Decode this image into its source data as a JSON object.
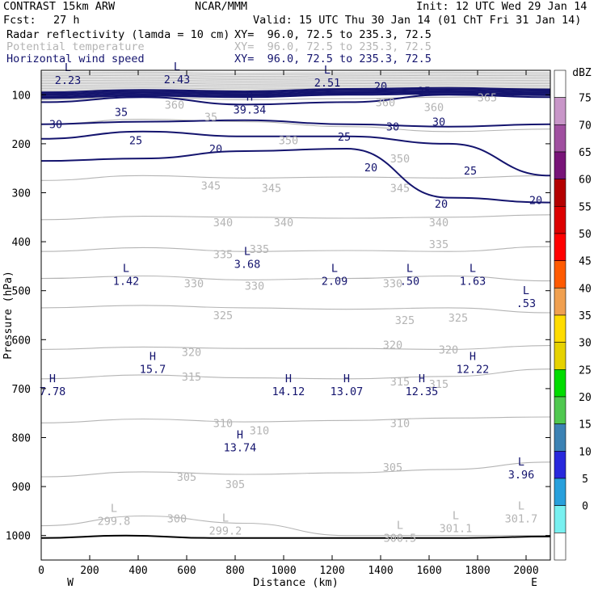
{
  "header": {
    "model": "CONTRAST 15km ARW",
    "org": "NCAR/MMM",
    "init": "Init: 12 UTC Wed 29 Jan 14",
    "fcst_label": "Fcst:",
    "fcst_value": "27 h",
    "valid": "Valid: 15 UTC Thu 30 Jan 14 (01 ChT Fri 31 Jan 14)",
    "fields": [
      {
        "name": "Radar reflectivity (lamda = 10 cm)",
        "xy": "XY=  96.0, 72.5 to 235.3, 72.5",
        "color": "#000000"
      },
      {
        "name": "Potential temperature",
        "xy": "XY=  96.0, 72.5 to 235.3, 72.5",
        "color": "#b4b4b4"
      },
      {
        "name": "Horizontal wind speed",
        "xy": "XY=  96.0, 72.5 to 235.3, 72.5",
        "color": "#14146e"
      }
    ]
  },
  "chart_data": {
    "type": "cross-section",
    "xlabel": "Distance (km)",
    "ylabel": "Pressure (hPa)",
    "xlim": [
      0,
      2100
    ],
    "ylim": [
      1050,
      50
    ],
    "x_ticks": [
      0,
      200,
      400,
      600,
      800,
      1000,
      1200,
      1400,
      1600,
      1800,
      2000
    ],
    "y_ticks": [
      100,
      200,
      300,
      400,
      500,
      600,
      700,
      800,
      900,
      1000
    ],
    "x_end_labels": {
      "left": "W",
      "right": "E"
    },
    "colorbar": {
      "unit": "dBZ",
      "levels": [
        "75",
        "70",
        "65",
        "60",
        "55",
        "50",
        "45",
        "40",
        "35",
        "30",
        "25",
        "20",
        "15",
        "10",
        "5",
        "0"
      ],
      "colors": [
        "#ffffff",
        "#c896c8",
        "#a050a0",
        "#781478",
        "#b40000",
        "#dc0000",
        "#ff0000",
        "#ff5a00",
        "#f0a050",
        "#ffdc00",
        "#e6d200",
        "#00dc00",
        "#50c850",
        "#3c82b4",
        "#2828dc",
        "#28a0dc",
        "#78f0f0",
        "#ffffff"
      ]
    },
    "theta_contours": [
      {
        "label": "360",
        "p": [
          110,
          105,
          110,
          108,
          105,
          100
        ]
      },
      {
        "label": "350",
        "p": [
          160,
          150,
          155,
          165,
          175,
          170
        ]
      },
      {
        "label": "345",
        "p": [
          275,
          265,
          270,
          268,
          270,
          265
        ]
      },
      {
        "label": "340",
        "p": [
          355,
          348,
          350,
          352,
          350,
          345
        ]
      },
      {
        "label": "335",
        "p": [
          420,
          412,
          420,
          418,
          420,
          410
        ]
      },
      {
        "label": "330",
        "p": [
          475,
          470,
          478,
          475,
          470,
          480
        ]
      },
      {
        "label": "325",
        "p": [
          535,
          530,
          535,
          538,
          535,
          545
        ]
      },
      {
        "label": "320",
        "p": [
          620,
          615,
          618,
          618,
          620,
          612
        ]
      },
      {
        "label": "315",
        "p": [
          680,
          672,
          678,
          680,
          675,
          660
        ]
      },
      {
        "label": "310",
        "p": [
          770,
          762,
          768,
          765,
          760,
          758
        ]
      },
      {
        "label": "305",
        "p": [
          880,
          870,
          875,
          872,
          865,
          850
        ]
      },
      {
        "label": "300",
        "p": [
          980,
          960,
          975,
          1000,
          1000,
          1000
        ]
      }
    ],
    "theta_labels": [
      {
        "text": "360",
        "x": 550,
        "p": 120
      },
      {
        "text": "360",
        "x": 1420,
        "p": 115
      },
      {
        "text": "360",
        "x": 1620,
        "p": 125
      },
      {
        "text": "365",
        "x": 1840,
        "p": 105
      },
      {
        "text": "350",
        "x": 1020,
        "p": 193
      },
      {
        "text": "350",
        "x": 1480,
        "p": 230
      },
      {
        "text": "35",
        "x": 700,
        "p": 145
      },
      {
        "text": "345",
        "x": 700,
        "p": 285
      },
      {
        "text": "345",
        "x": 950,
        "p": 290
      },
      {
        "text": "345",
        "x": 1480,
        "p": 290
      },
      {
        "text": "340",
        "x": 750,
        "p": 360
      },
      {
        "text": "340",
        "x": 1000,
        "p": 360
      },
      {
        "text": "340",
        "x": 1640,
        "p": 360
      },
      {
        "text": "335",
        "x": 750,
        "p": 425
      },
      {
        "text": "335",
        "x": 900,
        "p": 415
      },
      {
        "text": "335",
        "x": 1640,
        "p": 405
      },
      {
        "text": "330",
        "x": 630,
        "p": 485
      },
      {
        "text": "330",
        "x": 880,
        "p": 490
      },
      {
        "text": "330",
        "x": 1450,
        "p": 485
      },
      {
        "text": "325",
        "x": 750,
        "p": 550
      },
      {
        "text": "325",
        "x": 1500,
        "p": 560
      },
      {
        "text": "325",
        "x": 1720,
        "p": 555
      },
      {
        "text": "320",
        "x": 620,
        "p": 625
      },
      {
        "text": "320",
        "x": 1450,
        "p": 610
      },
      {
        "text": "320",
        "x": 1680,
        "p": 620
      },
      {
        "text": "315",
        "x": 620,
        "p": 675
      },
      {
        "text": "315",
        "x": 1480,
        "p": 685
      },
      {
        "text": "315",
        "x": 1640,
        "p": 690
      },
      {
        "text": "310",
        "x": 750,
        "p": 770
      },
      {
        "text": "310",
        "x": 900,
        "p": 785
      },
      {
        "text": "310",
        "x": 1480,
        "p": 770
      },
      {
        "text": "305",
        "x": 600,
        "p": 880
      },
      {
        "text": "305",
        "x": 800,
        "p": 895
      },
      {
        "text": "305",
        "x": 1450,
        "p": 860
      },
      {
        "text": "300",
        "x": 560,
        "p": 965
      }
    ],
    "wind_contours": [
      {
        "label": "35",
        "p": [
          115,
          105,
          120,
          115,
          100,
          105
        ]
      },
      {
        "label": "30",
        "p": [
          160,
          155,
          152,
          160,
          165,
          160
        ]
      },
      {
        "label": "25",
        "p": [
          190,
          175,
          185,
          185,
          200,
          265
        ]
      },
      {
        "label": "20",
        "p": [
          235,
          230,
          215,
          210,
          310,
          320
        ]
      }
    ],
    "wind_labels": [
      {
        "text": "35",
        "x": 330,
        "p": 135
      },
      {
        "text": "30",
        "x": 60,
        "p": 160
      },
      {
        "text": "25",
        "x": 390,
        "p": 193
      },
      {
        "text": "20",
        "x": 720,
        "p": 210
      },
      {
        "text": "25",
        "x": 1250,
        "p": 185
      },
      {
        "text": "30",
        "x": 1450,
        "p": 165
      },
      {
        "text": "30",
        "x": 1640,
        "p": 155
      },
      {
        "text": "20",
        "x": 1360,
        "p": 248
      },
      {
        "text": "20",
        "x": 1650,
        "p": 322
      },
      {
        "text": "25",
        "x": 1770,
        "p": 255
      },
      {
        "text": "20",
        "x": 2040,
        "p": 315
      },
      {
        "text": "20",
        "x": 1400,
        "p": 82
      },
      {
        "text": "25",
        "x": 1580,
        "p": 92
      }
    ],
    "pressure_labels": [
      {
        "type": "L",
        "value": "2.23",
        "x": 110,
        "p": 65,
        "color": "navy"
      },
      {
        "type": "L",
        "value": "2.43",
        "x": 560,
        "p": 63,
        "color": "navy"
      },
      {
        "type": "L",
        "value": "2.51",
        "x": 1180,
        "p": 70,
        "color": "navy"
      },
      {
        "type": "H",
        "value": "39.34",
        "x": 860,
        "p": 125,
        "color": "navy"
      },
      {
        "type": "L",
        "value": "3.68",
        "x": 850,
        "p": 440,
        "color": "navy"
      },
      {
        "type": "L",
        "value": "1.42",
        "x": 350,
        "p": 475,
        "color": "navy"
      },
      {
        "type": "L",
        "value": "2.09",
        "x": 1210,
        "p": 475,
        "color": "navy"
      },
      {
        "type": "L",
        "value": ".50",
        "x": 1520,
        "p": 475,
        "color": "navy"
      },
      {
        "type": "L",
        "value": "1.63",
        "x": 1780,
        "p": 475,
        "color": "navy"
      },
      {
        "type": "L",
        "value": ".53",
        "x": 2000,
        "p": 520,
        "color": "navy"
      },
      {
        "type": "H",
        "value": "15.7",
        "x": 460,
        "p": 655,
        "color": "navy"
      },
      {
        "type": "H",
        "value": "12.22",
        "x": 1780,
        "p": 655,
        "color": "navy"
      },
      {
        "type": "H",
        "value": "7.78",
        "x": 10,
        "p": 700,
        "color": "navy"
      },
      {
        "type": "H",
        "value": "14.12",
        "x": 1020,
        "p": 700,
        "color": "navy"
      },
      {
        "type": "H",
        "value": "13.07",
        "x": 1260,
        "p": 700,
        "color": "navy"
      },
      {
        "type": "H",
        "value": "12.35",
        "x": 1570,
        "p": 700,
        "color": "navy"
      },
      {
        "type": "H",
        "value": "13.74",
        "x": 820,
        "p": 815,
        "color": "navy"
      },
      {
        "type": "L",
        "value": "3.96",
        "x": 1980,
        "p": 870,
        "color": "navy"
      },
      {
        "type": "L",
        "value": "299.8",
        "x": 300,
        "p": 965,
        "color": "gray"
      },
      {
        "type": "L",
        "value": "299.2",
        "x": 760,
        "p": 985,
        "color": "gray"
      },
      {
        "type": "L",
        "value": "300.5",
        "x": 1480,
        "p": 1000,
        "color": "gray"
      },
      {
        "type": "L",
        "value": "301.1",
        "x": 1710,
        "p": 980,
        "color": "gray"
      },
      {
        "type": "L",
        "value": "301.7",
        "x": 1980,
        "p": 960,
        "color": "gray"
      }
    ],
    "terrain_p": [
      1005,
      1000,
      1005,
      1005,
      1005,
      1005,
      1002
    ]
  }
}
